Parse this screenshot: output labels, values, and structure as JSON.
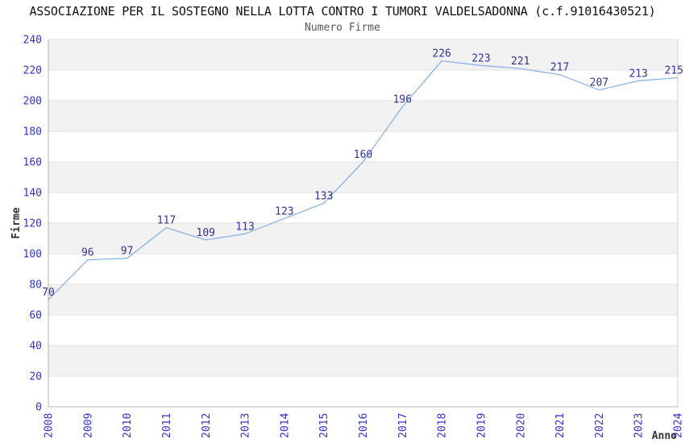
{
  "chart_data": {
    "type": "line",
    "title": "ASSOCIAZIONE PER IL SOSTEGNO NELLA LOTTA CONTRO I TUMORI VALDELSADONNA (c.f.91016430521)",
    "subtitle": "Numero Firme",
    "xlabel": "Anno",
    "ylabel": "Firme",
    "categories": [
      "2008",
      "2009",
      "2010",
      "2011",
      "2012",
      "2013",
      "2014",
      "2015",
      "2016",
      "2017",
      "2018",
      "2019",
      "2020",
      "2021",
      "2022",
      "2023",
      "2024"
    ],
    "values": [
      70,
      96,
      97,
      117,
      109,
      113,
      123,
      133,
      160,
      196,
      226,
      223,
      221,
      217,
      207,
      213,
      215
    ],
    "ylim": [
      0,
      240
    ],
    "yticks": [
      0,
      20,
      40,
      60,
      80,
      100,
      120,
      140,
      160,
      180,
      200,
      220,
      240
    ],
    "legend": "none",
    "grid": "horizontal gridlines with alternating background bands, gray band at top (240-220)",
    "colors": {
      "line": "#8ab4e7",
      "value_labels": "#333399",
      "tick_labels": "#3333cc",
      "band": "#f2f2f2",
      "grid": "#e0e0e0",
      "axis": "#b3b3b3",
      "axis_right": "#cccccc",
      "axis_titles": "#333333"
    }
  }
}
